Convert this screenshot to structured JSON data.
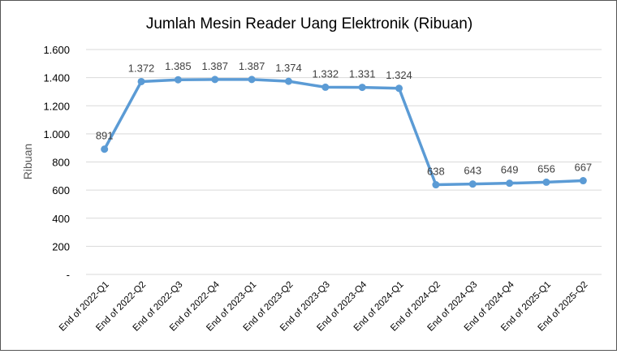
{
  "chart_data": {
    "type": "line",
    "title": "Jumlah Mesin Reader Uang Elektronik (Ribuan)",
    "xlabel": "",
    "ylabel": "Ribuan",
    "ylim": [
      0,
      1600
    ],
    "yticks": [
      0,
      200,
      400,
      600,
      800,
      1000,
      1200,
      1400,
      1600
    ],
    "ytick_labels": [
      "-",
      "200",
      "400",
      "600",
      "800",
      "1.000",
      "1.200",
      "1.400",
      "1.600"
    ],
    "grid": true,
    "legend": "none",
    "categories": [
      "End of 2022-Q1",
      "End of 2022-Q2",
      "End of 2022-Q3",
      "End of 2022-Q4",
      "End of 2023-Q1",
      "End of 2023-Q2",
      "End of 2023-Q3",
      "End of 2023-Q4",
      "End of 2024-Q1",
      "End of 2024-Q2",
      "End of 2024-Q3",
      "End of 2024-Q4",
      "End of 2025-Q1",
      "End of 2025-Q2"
    ],
    "series": [
      {
        "values": [
          891,
          1372,
          1385,
          1387,
          1387,
          1374,
          1332,
          1331,
          1324,
          638,
          643,
          649,
          656,
          667
        ],
        "data_labels": [
          "891",
          "1.372",
          "1.385",
          "1.387",
          "1.387",
          "1.374",
          "1.332",
          "1.331",
          "1.324",
          "638",
          "643",
          "649",
          "656",
          "667"
        ],
        "color": "#5B9BD5"
      }
    ]
  }
}
